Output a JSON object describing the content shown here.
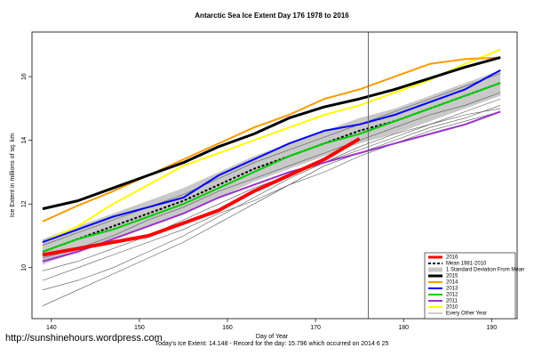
{
  "chart_data": {
    "type": "line",
    "title": "Antarctic Sea Ice Extent Day 176 1978 to 2016",
    "x_label": "Day of Year",
    "y_label": "Ice Extent in millions of sq. km",
    "footer": "Today's Ice Extent: 14.148 - Record for the day: 15.796 which occurred on 2014 6 25",
    "watermark": "http://sunshinehours.wordpress.com",
    "marker_day": 176,
    "x": [
      139,
      143,
      147,
      151,
      155,
      159,
      163,
      167,
      171,
      175,
      179,
      183,
      187,
      191
    ],
    "xlim": [
      137.8,
      192.9
    ],
    "ylim": [
      8.4,
      17.4
    ],
    "xticks": [
      140,
      150,
      160,
      170,
      180,
      190
    ],
    "yticks": [
      10,
      12,
      14,
      16
    ],
    "legend": "bottom-right",
    "series": [
      {
        "name": "2016",
        "color": "#ff0000",
        "width": 4,
        "values": [
          10.4,
          10.6,
          10.8,
          11.0,
          11.4,
          11.8,
          12.4,
          12.9,
          13.4,
          14.05,
          null,
          null,
          null,
          null
        ]
      },
      {
        "name": "Mean 1981-2010",
        "color": "#000000",
        "width": 2,
        "dash": true,
        "values": [
          10.5,
          10.9,
          11.3,
          11.7,
          12.1,
          12.6,
          13.1,
          13.5,
          13.9,
          14.3,
          14.6,
          15.0,
          15.4,
          15.8
        ]
      },
      {
        "name": "1 Standard Deviation From Mean",
        "color": "#c8c8c8",
        "band": true,
        "lower": [
          10.1,
          10.5,
          10.9,
          11.3,
          11.7,
          12.2,
          12.7,
          13.1,
          13.5,
          13.9,
          14.2,
          14.6,
          15.0,
          15.4
        ],
        "upper": [
          10.9,
          11.3,
          11.7,
          12.1,
          12.5,
          13.0,
          13.5,
          13.9,
          14.3,
          14.7,
          15.0,
          15.4,
          15.8,
          16.2
        ]
      },
      {
        "name": "2015",
        "color": "#000000",
        "width": 3,
        "values": [
          11.85,
          12.1,
          12.5,
          12.9,
          13.3,
          13.8,
          14.2,
          14.7,
          15.05,
          15.3,
          15.6,
          15.95,
          16.3,
          16.6
        ]
      },
      {
        "name": "2014",
        "color": "#ff9900",
        "width": 2,
        "values": [
          11.45,
          11.95,
          12.4,
          12.9,
          13.4,
          13.9,
          14.4,
          14.8,
          15.3,
          15.6,
          16.0,
          16.4,
          16.55,
          16.6
        ]
      },
      {
        "name": "2013",
        "color": "#0000ff",
        "width": 2,
        "values": [
          10.8,
          11.2,
          11.6,
          11.9,
          12.2,
          12.9,
          13.4,
          13.9,
          14.3,
          14.5,
          14.8,
          15.2,
          15.6,
          16.2
        ]
      },
      {
        "name": "2012",
        "color": "#00cc00",
        "width": 2,
        "values": [
          10.5,
          10.9,
          11.2,
          11.6,
          12.0,
          12.5,
          13.0,
          13.5,
          13.9,
          14.2,
          14.6,
          15.0,
          15.4,
          15.8
        ]
      },
      {
        "name": "2011",
        "color": "#9933cc",
        "width": 2,
        "values": [
          10.2,
          10.5,
          10.9,
          11.3,
          11.7,
          12.2,
          12.6,
          13.0,
          13.3,
          13.6,
          13.9,
          14.2,
          14.5,
          14.9
        ]
      },
      {
        "name": "2010",
        "color": "#ffff00",
        "width": 2,
        "values": [
          10.8,
          11.3,
          12.0,
          12.6,
          13.2,
          13.6,
          14.0,
          14.4,
          14.8,
          15.1,
          15.5,
          15.9,
          16.4,
          16.85
        ]
      },
      {
        "name": "Every Other Year",
        "color": "#555555",
        "width": 0.6,
        "lines": [
          [
            9.9,
            10.2,
            10.6,
            11.0,
            11.5,
            12.0,
            12.5,
            12.9,
            13.3,
            13.7,
            14.1,
            14.5,
            14.9,
            15.3
          ],
          [
            9.3,
            9.6,
            10.0,
            10.5,
            11.0,
            11.6,
            12.2,
            12.8,
            13.3,
            13.8,
            14.2,
            14.5,
            14.8,
            15.0
          ],
          [
            10.7,
            11.1,
            11.5,
            11.9,
            12.3,
            12.8,
            13.3,
            13.7,
            14.1,
            14.5,
            14.9,
            15.3,
            15.7,
            16.1
          ],
          [
            8.8,
            9.3,
            9.8,
            10.3,
            10.8,
            11.4,
            12.0,
            12.6,
            13.2,
            13.6,
            14.0,
            14.4,
            14.7,
            15.1
          ],
          [
            10.3,
            10.6,
            11.0,
            11.5,
            11.9,
            12.4,
            12.8,
            13.2,
            13.6,
            14.0,
            14.4,
            14.8,
            15.1,
            15.5
          ],
          [
            9.6,
            10.0,
            10.4,
            10.8,
            11.2,
            11.7,
            12.1,
            12.6,
            13.0,
            13.5,
            13.9,
            14.3,
            14.6,
            14.9
          ]
        ]
      }
    ]
  }
}
